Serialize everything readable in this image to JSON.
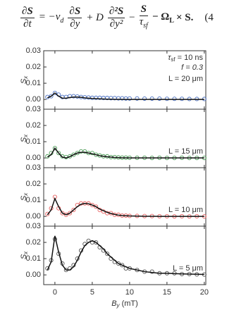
{
  "equation": {
    "lhs_num": "∂S",
    "lhs_den": "∂t",
    "t1": "= −v",
    "t1_sub": "d",
    "t2_num": "∂S",
    "t2_den": "∂y",
    "t3": "+ D",
    "t4_num": "∂²S",
    "t4_den": "∂y²",
    "t5": "−",
    "t5_num": "S",
    "t5_den": "τ",
    "t5_den_sub": "sf",
    "t6": "− Ω",
    "t6_sub": "L",
    "t7": "× S.",
    "number": "(4"
  },
  "chart_data": [
    {
      "type": "scatter",
      "ylabel": "S",
      "ylabel_sub": "x",
      "xlim": [
        -1.5,
        20.2
      ],
      "ylim": [
        -0.006,
        0.03
      ],
      "xticks": [
        0,
        5,
        10,
        15,
        20
      ],
      "xtick_labels_shown": false,
      "yticks": [
        {
          "value": 0,
          "label": "0.00"
        },
        0.01,
        0.02,
        0.03
      ],
      "notes": [
        {
          "text": "τ",
          "sub": "sf",
          "tail": " = 10 ns"
        },
        {
          "text": "f = 0.3"
        }
      ],
      "label": "L = 20 μm",
      "label_color": "#3f63b0",
      "x": [
        -1,
        -0.5,
        0,
        0.5,
        1,
        1.5,
        2,
        2.5,
        3,
        3.5,
        4,
        4.5,
        5,
        5.5,
        6,
        6.5,
        7,
        7.5,
        8,
        8.5,
        9,
        9.5,
        10,
        11,
        12,
        13,
        14,
        15,
        16,
        17,
        18,
        19,
        20
      ],
      "series": [
        {
          "type": "scatter",
          "color": "#4a6fc0",
          "values": [
            0.0015,
            0.002,
            0.004,
            0.003,
            0.0015,
            0.0015,
            0.002,
            0.002,
            0.0018,
            0.0015,
            0.0013,
            0.0012,
            0.001,
            0.001,
            0.001,
            0.0009,
            0.0009,
            0.0008,
            0.0008,
            0.0007,
            0.0007,
            0.0006,
            0.0006,
            0.0006,
            0.0005,
            0.0005,
            0.0005,
            0.0004,
            0.0004,
            0.0004,
            0.0003,
            0.0003,
            0.0003
          ]
        },
        {
          "type": "line",
          "color": "#111111",
          "values": [
            0.001,
            0.002,
            0.004,
            0.002,
            0.0008,
            0.0008,
            0.0012,
            0.0015,
            0.0015,
            0.0013,
            0.001,
            0.0008,
            0.0006,
            0.0005,
            0.0004,
            0.0003,
            0.0002,
            0.0002,
            0.0001,
            0.0001,
            0.0001,
            0,
            0,
            0,
            0,
            0,
            0,
            0,
            0,
            0,
            0,
            0,
            0
          ]
        }
      ]
    },
    {
      "type": "scatter",
      "ylabel": "S",
      "ylabel_sub": "x",
      "xlim": [
        -1.5,
        20.2
      ],
      "ylim": [
        -0.006,
        0.03
      ],
      "xticks": [
        0,
        5,
        10,
        15,
        20
      ],
      "xtick_labels_shown": false,
      "yticks": [
        {
          "value": 0,
          "label": "0.00"
        },
        0.01,
        0.02,
        0.03
      ],
      "label": "L = 15 μm",
      "label_color": "#3c8c46",
      "x": [
        -1,
        -0.5,
        0,
        0.5,
        1,
        1.5,
        2,
        2.5,
        3,
        3.5,
        4,
        4.5,
        5,
        5.5,
        6,
        6.5,
        7,
        7.5,
        8,
        8.5,
        9,
        9.5,
        10,
        11,
        12,
        13,
        14,
        15,
        16,
        17,
        18,
        19,
        20
      ],
      "series": [
        {
          "type": "scatter",
          "color": "#4a9a55",
          "values": [
            0.001,
            0.003,
            0.006,
            0.003,
            0.001,
            0.0005,
            0.001,
            0.002,
            0.003,
            0.004,
            0.004,
            0.003,
            0.003,
            0.002,
            0.0015,
            0.001,
            0.001,
            0.0005,
            0.0005,
            0.0003,
            0.0002,
            0.0002,
            0.0001,
            0.0001,
            0.0001,
            0,
            0.0001,
            0,
            0,
            0.0001,
            0,
            0,
            0
          ]
        },
        {
          "type": "line",
          "color": "#111111",
          "values": [
            0.0005,
            0.002,
            0.006,
            0.003,
            0.0005,
            0,
            0.0008,
            0.002,
            0.003,
            0.0035,
            0.0035,
            0.003,
            0.0025,
            0.002,
            0.0014,
            0.001,
            0.0007,
            0.0005,
            0.0003,
            0.0002,
            0.0001,
            0.0001,
            0,
            0,
            0,
            0,
            0,
            0,
            0,
            0,
            0,
            0,
            0
          ]
        }
      ]
    },
    {
      "type": "scatter",
      "ylabel": "S",
      "ylabel_sub": "x",
      "xlim": [
        -1.5,
        20.2
      ],
      "ylim": [
        -0.006,
        0.03
      ],
      "xticks": [
        0,
        5,
        10,
        15,
        20
      ],
      "xtick_labels_shown": false,
      "yticks": [
        {
          "value": 0,
          "label": "0.00"
        },
        0.01,
        0.02,
        0.03
      ],
      "label": "L = 10 μm",
      "label_color": "#e04848",
      "x": [
        -1,
        -0.5,
        0,
        0.5,
        1,
        1.5,
        2,
        2.5,
        3,
        3.5,
        4,
        4.5,
        5,
        5.5,
        6,
        6.5,
        7,
        7.5,
        8,
        8.5,
        9,
        9.5,
        10,
        11,
        12,
        13,
        14,
        15,
        16,
        17,
        18,
        19,
        20
      ],
      "series": [
        {
          "type": "scatter",
          "color": "#e86060",
          "values": [
            0.0015,
            0.005,
            0.012,
            0.005,
            0.002,
            0.001,
            0.002,
            0.004,
            0.007,
            0.008,
            0.008,
            0.008,
            0.007,
            0.006,
            0.004,
            0.003,
            0.002,
            0.002,
            0.001,
            0.001,
            0.0005,
            0.0005,
            0.0003,
            0.0003,
            0.0002,
            0.0002,
            0.0001,
            0.0001,
            0,
            0.0001,
            0,
            0.0001,
            0
          ]
        },
        {
          "type": "line",
          "color": "#111111",
          "values": [
            0.001,
            0.004,
            0.011,
            0.006,
            0.002,
            0.001,
            0.002,
            0.004,
            0.006,
            0.0075,
            0.008,
            0.0078,
            0.007,
            0.006,
            0.0045,
            0.0035,
            0.0025,
            0.0018,
            0.0012,
            0.0008,
            0.0005,
            0.0004,
            0.0003,
            0.0002,
            0.0001,
            0.0001,
            0,
            0,
            0,
            0,
            0,
            0,
            0
          ]
        }
      ]
    },
    {
      "type": "scatter",
      "ylabel": "S",
      "ylabel_sub": "x",
      "xlim": [
        -1.5,
        20.2
      ],
      "ylim": [
        -0.006,
        0.03
      ],
      "xticks": [
        0,
        5,
        10,
        15,
        20
      ],
      "xtick_labels_shown": true,
      "xlabel": "B",
      "xlabel_sub": "y",
      "xlabel_unit": " (mT)",
      "yticks": [
        {
          "value": 0,
          "label": "0.00"
        },
        0.01,
        0.02,
        0.03
      ],
      "label": "L = 5 μm",
      "label_color": "#222222",
      "x": [
        -1,
        -0.5,
        0,
        0.5,
        1,
        1.5,
        2,
        2.5,
        3,
        3.5,
        4,
        4.5,
        5,
        5.5,
        6,
        6.5,
        7,
        7.5,
        8,
        8.5,
        9,
        9.5,
        10,
        11,
        12,
        13,
        14,
        15,
        16,
        17,
        18,
        19,
        20
      ],
      "series": [
        {
          "type": "scatter",
          "color": "#555555",
          "values": [
            0.004,
            0.009,
            0.022,
            0.013,
            0.007,
            0.003,
            0.004,
            0.006,
            0.01,
            0.015,
            0.019,
            0.021,
            0.02,
            0.02,
            0.017,
            0.015,
            0.013,
            0.01,
            0.008,
            0.007,
            0.006,
            0.004,
            0.004,
            0.003,
            0.002,
            0.002,
            0.001,
            0.001,
            0.001,
            0.0005,
            0.0005,
            0.0003,
            0.0002
          ]
        },
        {
          "type": "line",
          "color": "#111111",
          "values": [
            0.003,
            0.008,
            0.024,
            0.014,
            0.006,
            0.003,
            0.003,
            0.005,
            0.009,
            0.014,
            0.018,
            0.02,
            0.021,
            0.02,
            0.018,
            0.016,
            0.013,
            0.011,
            0.009,
            0.007,
            0.006,
            0.005,
            0.004,
            0.003,
            0.002,
            0.0015,
            0.001,
            0.001,
            0.0008,
            0.0006,
            0.0005,
            0.0004,
            0.0003
          ]
        }
      ]
    }
  ]
}
